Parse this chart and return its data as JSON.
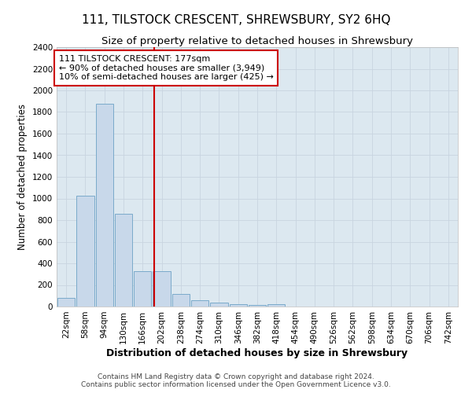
{
  "title": "111, TILSTOCK CRESCENT, SHREWSBURY, SY2 6HQ",
  "subtitle": "Size of property relative to detached houses in Shrewsbury",
  "xlabel": "Distribution of detached houses by size in Shrewsbury",
  "ylabel": "Number of detached properties",
  "footer_line1": "Contains HM Land Registry data © Crown copyright and database right 2024.",
  "footer_line2": "Contains public sector information licensed under the Open Government Licence v3.0.",
  "bar_labels": [
    "22sqm",
    "58sqm",
    "94sqm",
    "130sqm",
    "166sqm",
    "202sqm",
    "238sqm",
    "274sqm",
    "310sqm",
    "346sqm",
    "382sqm",
    "418sqm",
    "454sqm",
    "490sqm",
    "526sqm",
    "562sqm",
    "598sqm",
    "634sqm",
    "670sqm",
    "706sqm",
    "742sqm"
  ],
  "bar_values": [
    80,
    1025,
    1880,
    860,
    325,
    325,
    115,
    55,
    40,
    25,
    15,
    25,
    0,
    0,
    0,
    0,
    0,
    0,
    0,
    0,
    0
  ],
  "bar_color": "#c8d8ea",
  "bar_edge_color": "#7aaaca",
  "red_line_x": 4.62,
  "annotation_line1": "111 TILSTOCK CRESCENT: 177sqm",
  "annotation_line2": "← 90% of detached houses are smaller (3,949)",
  "annotation_line3": "10% of semi-detached houses are larger (425) →",
  "ylim": [
    0,
    2400
  ],
  "yticks": [
    0,
    200,
    400,
    600,
    800,
    1000,
    1200,
    1400,
    1600,
    1800,
    2000,
    2200,
    2400
  ],
  "grid_color": "#c8d4e0",
  "background_color": "#dce8f0",
  "annotation_box_color": "#ffffff",
  "annotation_box_edge": "#cc0000",
  "red_line_color": "#cc0000",
  "title_fontsize": 11,
  "subtitle_fontsize": 9.5,
  "tick_fontsize": 7.5,
  "ylabel_fontsize": 8.5,
  "xlabel_fontsize": 9,
  "annotation_fontsize": 8,
  "footer_fontsize": 6.5
}
